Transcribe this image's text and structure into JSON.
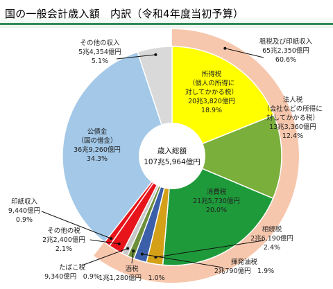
{
  "header": {
    "title": "国の一般会計歳入額　内訳（令和4年度当初予算）"
  },
  "center": {
    "line1": "歳入総額",
    "line2": "107兆5,964億円"
  },
  "outer_ring": {
    "tax_label_line1": "租税及び印紙収入",
    "tax_label_line2": "65兆2,350億円",
    "tax_label_line3": "60.6%",
    "tax_share": 60.6,
    "color_tax_ring": "#f7c7ad"
  },
  "chart_data": {
    "type": "pie",
    "title": "国の一般会計歳入額　内訳（令和4年度当初予算）",
    "total": "107兆5,964億円",
    "slices": [
      {
        "key": "income_tax",
        "lines": [
          "所得税",
          "（個人の所得に",
          "対してかかる税）",
          "20兆3,820億円",
          "18.9%"
        ],
        "value": 18.9,
        "color": "#ffff00"
      },
      {
        "key": "corporate_tax",
        "lines": [
          "法人税",
          "（会社などの所得に",
          "対してかかる税）",
          "13兆3,360億円",
          "12.4%"
        ],
        "value": 12.4,
        "color": "#7aaf3c"
      },
      {
        "key": "consumption_tax",
        "lines": [
          "消費税",
          "21兆5,730億円",
          "20.0%"
        ],
        "value": 20.0,
        "color": "#1e9a3a"
      },
      {
        "key": "inheritance_tax",
        "lines": [
          "相続税",
          "2兆6,190億円",
          "2.4%"
        ],
        "value": 2.4,
        "color": "#d4a017"
      },
      {
        "key": "gasoline_tax",
        "lines": [
          "揮発油税",
          "2兆790億円　1.9%"
        ],
        "value": 1.9,
        "color": "#3b5fa8"
      },
      {
        "key": "liquor_tax",
        "lines": [
          "酒税",
          "1兆1,280億円　1.0%"
        ],
        "value": 1.0,
        "color": "#6d8f3a"
      },
      {
        "key": "tobacco_tax",
        "lines": [
          "たばこ税",
          "9,340億円　0.9%"
        ],
        "value": 0.9,
        "color": "#c8c8c8"
      },
      {
        "key": "other_taxes",
        "lines": [
          "その他の税",
          "2兆2,400億円",
          "2.1%"
        ],
        "value": 2.1,
        "color": "#e8141b"
      },
      {
        "key": "stamp_revenue",
        "lines": [
          "印紙収入",
          "9,440億円",
          "0.9%"
        ],
        "value": 0.9,
        "color": "#e8141b"
      },
      {
        "key": "public_bonds",
        "lines": [
          "公債金",
          "（国の借金）",
          "36兆9,260億円",
          "34.3%"
        ],
        "value": 34.3,
        "color": "#a3c8e8"
      },
      {
        "key": "other_revenue",
        "lines": [
          "その他の収入",
          "5兆4,354億円",
          "5.1%"
        ],
        "value": 5.1,
        "color": "#d9d9d9"
      }
    ]
  }
}
